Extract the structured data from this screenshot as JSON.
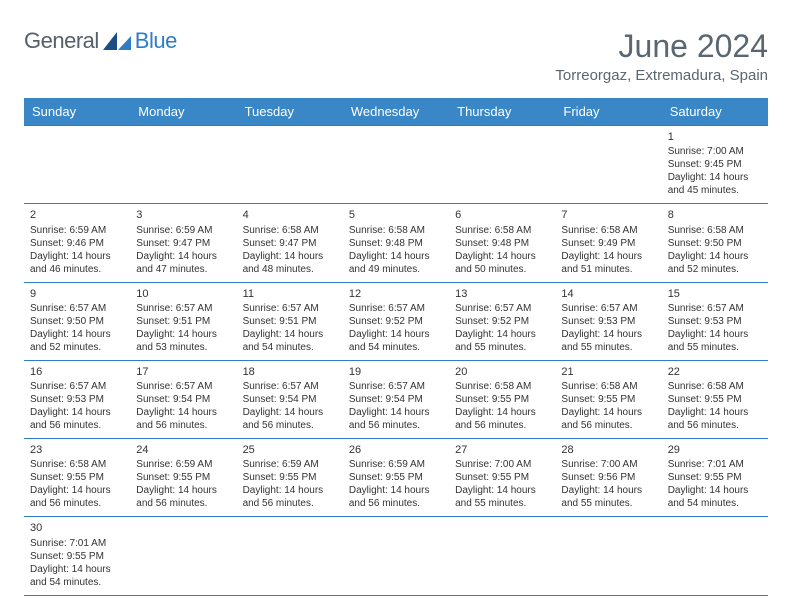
{
  "logo": {
    "text_a": "General",
    "text_b": "Blue"
  },
  "title": "June 2024",
  "location": "Torreorgaz, Extremadura, Spain",
  "colors": {
    "header_bg": "#3a87c7",
    "header_text": "#ffffff",
    "border": "#2f7dc4",
    "body_text": "#333333",
    "title_text": "#5a6670"
  },
  "day_headers": [
    "Sunday",
    "Monday",
    "Tuesday",
    "Wednesday",
    "Thursday",
    "Friday",
    "Saturday"
  ],
  "weeks": [
    [
      null,
      null,
      null,
      null,
      null,
      null,
      {
        "n": "1",
        "sr": "7:00 AM",
        "ss": "9:45 PM",
        "dl": "14 hours and 45 minutes."
      }
    ],
    [
      {
        "n": "2",
        "sr": "6:59 AM",
        "ss": "9:46 PM",
        "dl": "14 hours and 46 minutes."
      },
      {
        "n": "3",
        "sr": "6:59 AM",
        "ss": "9:47 PM",
        "dl": "14 hours and 47 minutes."
      },
      {
        "n": "4",
        "sr": "6:58 AM",
        "ss": "9:47 PM",
        "dl": "14 hours and 48 minutes."
      },
      {
        "n": "5",
        "sr": "6:58 AM",
        "ss": "9:48 PM",
        "dl": "14 hours and 49 minutes."
      },
      {
        "n": "6",
        "sr": "6:58 AM",
        "ss": "9:48 PM",
        "dl": "14 hours and 50 minutes."
      },
      {
        "n": "7",
        "sr": "6:58 AM",
        "ss": "9:49 PM",
        "dl": "14 hours and 51 minutes."
      },
      {
        "n": "8",
        "sr": "6:58 AM",
        "ss": "9:50 PM",
        "dl": "14 hours and 52 minutes."
      }
    ],
    [
      {
        "n": "9",
        "sr": "6:57 AM",
        "ss": "9:50 PM",
        "dl": "14 hours and 52 minutes."
      },
      {
        "n": "10",
        "sr": "6:57 AM",
        "ss": "9:51 PM",
        "dl": "14 hours and 53 minutes."
      },
      {
        "n": "11",
        "sr": "6:57 AM",
        "ss": "9:51 PM",
        "dl": "14 hours and 54 minutes."
      },
      {
        "n": "12",
        "sr": "6:57 AM",
        "ss": "9:52 PM",
        "dl": "14 hours and 54 minutes."
      },
      {
        "n": "13",
        "sr": "6:57 AM",
        "ss": "9:52 PM",
        "dl": "14 hours and 55 minutes."
      },
      {
        "n": "14",
        "sr": "6:57 AM",
        "ss": "9:53 PM",
        "dl": "14 hours and 55 minutes."
      },
      {
        "n": "15",
        "sr": "6:57 AM",
        "ss": "9:53 PM",
        "dl": "14 hours and 55 minutes."
      }
    ],
    [
      {
        "n": "16",
        "sr": "6:57 AM",
        "ss": "9:53 PM",
        "dl": "14 hours and 56 minutes."
      },
      {
        "n": "17",
        "sr": "6:57 AM",
        "ss": "9:54 PM",
        "dl": "14 hours and 56 minutes."
      },
      {
        "n": "18",
        "sr": "6:57 AM",
        "ss": "9:54 PM",
        "dl": "14 hours and 56 minutes."
      },
      {
        "n": "19",
        "sr": "6:57 AM",
        "ss": "9:54 PM",
        "dl": "14 hours and 56 minutes."
      },
      {
        "n": "20",
        "sr": "6:58 AM",
        "ss": "9:55 PM",
        "dl": "14 hours and 56 minutes."
      },
      {
        "n": "21",
        "sr": "6:58 AM",
        "ss": "9:55 PM",
        "dl": "14 hours and 56 minutes."
      },
      {
        "n": "22",
        "sr": "6:58 AM",
        "ss": "9:55 PM",
        "dl": "14 hours and 56 minutes."
      }
    ],
    [
      {
        "n": "23",
        "sr": "6:58 AM",
        "ss": "9:55 PM",
        "dl": "14 hours and 56 minutes."
      },
      {
        "n": "24",
        "sr": "6:59 AM",
        "ss": "9:55 PM",
        "dl": "14 hours and 56 minutes."
      },
      {
        "n": "25",
        "sr": "6:59 AM",
        "ss": "9:55 PM",
        "dl": "14 hours and 56 minutes."
      },
      {
        "n": "26",
        "sr": "6:59 AM",
        "ss": "9:55 PM",
        "dl": "14 hours and 56 minutes."
      },
      {
        "n": "27",
        "sr": "7:00 AM",
        "ss": "9:55 PM",
        "dl": "14 hours and 55 minutes."
      },
      {
        "n": "28",
        "sr": "7:00 AM",
        "ss": "9:56 PM",
        "dl": "14 hours and 55 minutes."
      },
      {
        "n": "29",
        "sr": "7:01 AM",
        "ss": "9:55 PM",
        "dl": "14 hours and 54 minutes."
      }
    ],
    [
      {
        "n": "30",
        "sr": "7:01 AM",
        "ss": "9:55 PM",
        "dl": "14 hours and 54 minutes."
      },
      null,
      null,
      null,
      null,
      null,
      null
    ]
  ],
  "labels": {
    "sunrise": "Sunrise: ",
    "sunset": "Sunset: ",
    "daylight": "Daylight: "
  }
}
